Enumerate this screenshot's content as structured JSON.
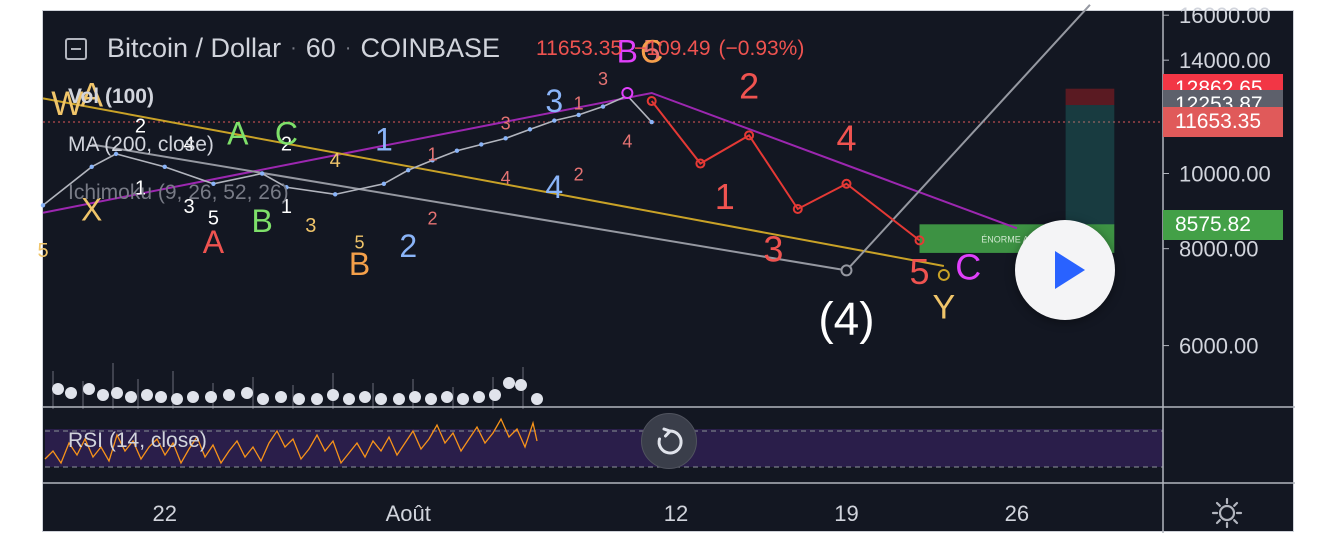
{
  "header": {
    "symbol": "Bitcoin / Dollar",
    "interval": "60",
    "exchange": "COINBASE",
    "separator": "·",
    "last": "11653.35",
    "change": "−109.49",
    "change_pct": "(−0.93%)"
  },
  "indicators": {
    "vol": "Vol (100)",
    "ma": "MA (200, close)",
    "ichimoku": "Ichimoku (9, 26, 52, 26)",
    "rsi": "RSI (14, close)"
  },
  "chart_data": {
    "type": "line",
    "title": "Bitcoin / Dollar · 60 · COINBASE",
    "y_axis": {
      "ticks": [
        "16000.00",
        "14000.00",
        "10000.00",
        "8000.00",
        "6000.00"
      ],
      "range": [
        5000,
        16200
      ],
      "scale": "log"
    },
    "x_axis": {
      "ticks": [
        "22",
        "Août",
        "12",
        "19",
        "26"
      ]
    },
    "price_tags": [
      {
        "value": 12862.65,
        "label": "12862.65",
        "color": "#f23645"
      },
      {
        "value": 12253.87,
        "label": "12253.87",
        "color": "#5d606b"
      },
      {
        "value": 11653.35,
        "label": "11653.35",
        "color": "#e05a5a"
      },
      {
        "value": 8575.82,
        "label": "8575.82",
        "color": "#43a047"
      }
    ],
    "price_history": {
      "color": "#b2b5be",
      "x": [
        "2019-07-17",
        "2019-07-19",
        "2019-07-20",
        "2019-07-22",
        "2019-07-24",
        "2019-07-26",
        "2019-07-27",
        "2019-07-29",
        "2019-07-31",
        "2019-08-01",
        "2019-08-02",
        "2019-08-03",
        "2019-08-04",
        "2019-08-05",
        "2019-08-06",
        "2019-08-07",
        "2019-08-08",
        "2019-08-09",
        "2019-08-10",
        "2019-08-11"
      ],
      "y": [
        9100,
        10200,
        10600,
        10200,
        9700,
        10000,
        9600,
        9400,
        9700,
        10100,
        10400,
        10700,
        10900,
        11100,
        11400,
        11700,
        11900,
        12200,
        12600,
        11650
      ]
    },
    "projection": {
      "name": "wave projection",
      "color": "#e53935",
      "x": [
        "2019-08-11",
        "2019-08-13",
        "2019-08-15",
        "2019-08-17",
        "2019-08-19",
        "2019-08-22"
      ],
      "y": [
        12400,
        10300,
        11200,
        9000,
        9700,
        8200
      ]
    },
    "trendlines": [
      {
        "color": "#9c27b0",
        "x": [
          "2019-07-17",
          "2019-08-11",
          "2019-08-26"
        ],
        "y": [
          8900,
          12700,
          8500
        ]
      },
      {
        "color": "#c9a227",
        "x": [
          "2019-07-17",
          "2019-08-23"
        ],
        "y": [
          12500,
          7600
        ]
      },
      {
        "color": "#9598a1",
        "x": [
          "2019-07-19",
          "2019-08-19"
        ],
        "y": [
          10900,
          7500
        ]
      },
      {
        "color": "#9598a1",
        "x": [
          "2019-08-19",
          "2019-08-29"
        ],
        "y": [
          7500,
          16500
        ]
      }
    ],
    "annotations": [
      {
        "text": "W",
        "color": "#f0c56a",
        "x": "2019-07-18",
        "y": 11900,
        "size": 34
      },
      {
        "text": "A",
        "color": "#f0c56a",
        "x": "2019-07-19",
        "y": 12200,
        "size": 34
      },
      {
        "text": "X",
        "color": "#f0c56a",
        "x": "2019-07-19",
        "y": 8700,
        "size": 32
      },
      {
        "text": "5",
        "color": "#f0c56a",
        "x": "2019-07-17",
        "y": 7800,
        "size": 20
      },
      {
        "text": "2",
        "color": "#ffffff",
        "x": "2019-07-21",
        "y": 11300,
        "size": 20
      },
      {
        "text": "4",
        "color": "#ffffff",
        "x": "2019-07-23",
        "y": 10700,
        "size": 20
      },
      {
        "text": "1",
        "color": "#ffffff",
        "x": "2019-07-21",
        "y": 9400,
        "size": 20
      },
      {
        "text": "3",
        "color": "#ffffff",
        "x": "2019-07-23",
        "y": 8900,
        "size": 20
      },
      {
        "text": "5",
        "color": "#ffffff",
        "x": "2019-07-24",
        "y": 8600,
        "size": 20
      },
      {
        "text": "2",
        "color": "#ffffff",
        "x": "2019-07-27",
        "y": 10700,
        "size": 20
      },
      {
        "text": "1",
        "color": "#ffffff",
        "x": "2019-07-27",
        "y": 8900,
        "size": 20
      },
      {
        "text": "A",
        "color": "#7ee06a",
        "x": "2019-07-25",
        "y": 10900,
        "size": 32
      },
      {
        "text": "C",
        "color": "#7ee06a",
        "x": "2019-07-27",
        "y": 10900,
        "size": 32
      },
      {
        "text": "B",
        "color": "#7ee06a",
        "x": "2019-07-26",
        "y": 8400,
        "size": 32
      },
      {
        "text": "A",
        "color": "#ef5350",
        "x": "2019-07-24",
        "y": 7900,
        "size": 32
      },
      {
        "text": "3",
        "color": "#f0c56a",
        "x": "2019-07-28",
        "y": 8400,
        "size": 20
      },
      {
        "text": "4",
        "color": "#f0c56a",
        "x": "2019-07-29",
        "y": 10200,
        "size": 20
      },
      {
        "text": "5",
        "color": "#f0c56a",
        "x": "2019-07-30",
        "y": 8000,
        "size": 18
      },
      {
        "text": "B",
        "color": "#f5a04a",
        "x": "2019-07-30",
        "y": 7400,
        "size": 32
      },
      {
        "text": "1",
        "color": "#8ab4f8",
        "x": "2019-07-31",
        "y": 10700,
        "size": 32
      },
      {
        "text": "2",
        "color": "#8ab4f8",
        "x": "2019-08-01",
        "y": 7800,
        "size": 32
      },
      {
        "text": "1",
        "color": "#e57373",
        "x": "2019-08-02",
        "y": 10400,
        "size": 18
      },
      {
        "text": "2",
        "color": "#e57373",
        "x": "2019-08-02",
        "y": 8600,
        "size": 18
      },
      {
        "text": "3",
        "color": "#e57373",
        "x": "2019-08-05",
        "y": 11400,
        "size": 18
      },
      {
        "text": "4",
        "color": "#e57373",
        "x": "2019-08-05",
        "y": 9700,
        "size": 18
      },
      {
        "text": "3",
        "color": "#8ab4f8",
        "x": "2019-08-07",
        "y": 12000,
        "size": 32
      },
      {
        "text": "4",
        "color": "#8ab4f8",
        "x": "2019-08-07",
        "y": 9300,
        "size": 32
      },
      {
        "text": "1",
        "color": "#e57373",
        "x": "2019-08-08",
        "y": 12100,
        "size": 18
      },
      {
        "text": "2",
        "color": "#e57373",
        "x": "2019-08-08",
        "y": 9800,
        "size": 18
      },
      {
        "text": "3",
        "color": "#e57373",
        "x": "2019-08-09",
        "y": 13000,
        "size": 18
      },
      {
        "text": "4",
        "color": "#e57373",
        "x": "2019-08-10",
        "y": 10800,
        "size": 18
      },
      {
        "text": "B",
        "color": "#e040fb",
        "x": "2019-08-10",
        "y": 13900,
        "size": 32
      },
      {
        "text": "5",
        "color": "#e57373",
        "x": "2019-08-11",
        "y": 13900,
        "size": 32
      },
      {
        "text": "C",
        "color": "#f5a04a",
        "x": "2019-08-11",
        "y": 13900,
        "size": 32
      },
      {
        "text": "2",
        "color": "#ef5350",
        "x": "2019-08-15",
        "y": 12500,
        "size": 36
      },
      {
        "text": "1",
        "color": "#ef5350",
        "x": "2019-08-14",
        "y": 9000,
        "size": 36
      },
      {
        "text": "4",
        "color": "#ef5350",
        "x": "2019-08-19",
        "y": 10700,
        "size": 36
      },
      {
        "text": "3",
        "color": "#ef5350",
        "x": "2019-08-16",
        "y": 7700,
        "size": 36
      },
      {
        "text": "5",
        "color": "#ef5350",
        "x": "2019-08-22",
        "y": 7200,
        "size": 36
      },
      {
        "text": "Y",
        "color": "#f0c56a",
        "x": "2019-08-23",
        "y": 6500,
        "size": 34
      },
      {
        "text": "C",
        "color": "#e040fb",
        "x": "2019-08-24",
        "y": 7300,
        "size": 36
      },
      {
        "text": "(4)",
        "color": "#ffffff",
        "x": "2019-08-19",
        "y": 6200,
        "size": 46
      }
    ],
    "zone": {
      "label": "ÉNORME ACHAT",
      "color": "#43a047",
      "x": [
        "2019-08-22",
        "2019-08-30"
      ],
      "y": [
        7900,
        8600
      ]
    },
    "position_box": {
      "color": "#26a69a",
      "x": [
        "2019-08-28",
        "2019-08-30"
      ],
      "y": [
        8575.82,
        12862.65
      ]
    },
    "markers": [
      {
        "color": "#c9a227",
        "x": "2019-08-23",
        "y": 7400
      },
      {
        "color": "#9598a1",
        "x": "2019-08-19",
        "y": 7500
      },
      {
        "color": "#e040fb",
        "x": "2019-08-10",
        "y": 12700
      }
    ]
  }
}
